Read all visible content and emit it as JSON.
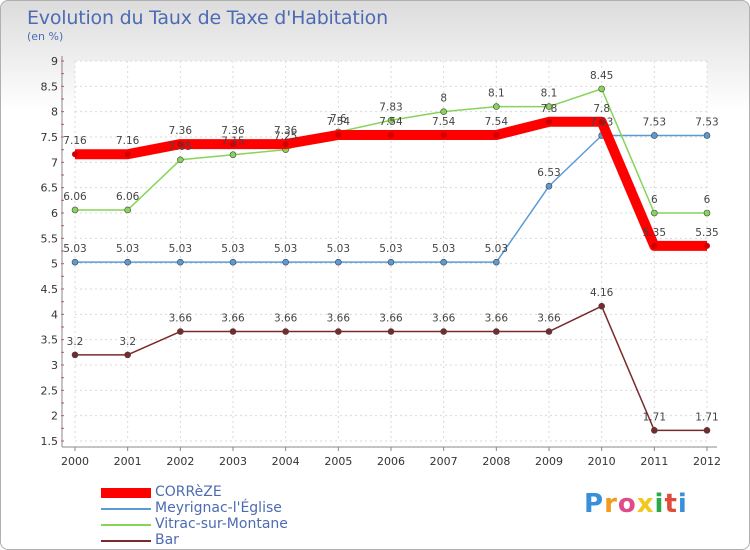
{
  "chart_data": {
    "type": "line",
    "title": "Evolution du Taux de Taxe d'Habitation",
    "subtitle": "(en %)",
    "x": [
      "2000",
      "2001",
      "2002",
      "2003",
      "2004",
      "2005",
      "2006",
      "2007",
      "2008",
      "2009",
      "2010",
      "2011",
      "2012"
    ],
    "ylim": [
      1.5,
      9
    ],
    "yticks": [
      "1.5",
      "2",
      "2.5",
      "3",
      "3.5",
      "4",
      "4.5",
      "5",
      "5.5",
      "6",
      "6.5",
      "7",
      "7.5",
      "8",
      "8.5",
      "9"
    ],
    "grid": true,
    "legend_position": "bottom-left",
    "series": [
      {
        "name": "CORRèZE",
        "color": "#ff0000",
        "values": [
          7.16,
          7.16,
          7.36,
          7.36,
          7.36,
          7.54,
          7.54,
          7.54,
          7.54,
          7.8,
          7.8,
          5.35,
          5.35
        ],
        "labels": [
          "7.16",
          "7.16",
          "7.36",
          "7.36",
          "7.36",
          "7.54",
          "7.54",
          "7.54",
          "7.54",
          "7.8",
          "7.8",
          "5.35",
          "5.35"
        ]
      },
      {
        "name": "Meyrignac-l'Église",
        "color": "#5b9bd5",
        "values": [
          5.03,
          5.03,
          5.03,
          5.03,
          5.03,
          5.03,
          5.03,
          5.03,
          5.03,
          6.53,
          7.53,
          7.53,
          7.53
        ],
        "labels": [
          "5.03",
          "5.03",
          "5.03",
          "5.03",
          "5.03",
          "5.03",
          "5.03",
          "5.03",
          "5.03",
          "6.53",
          "7.53",
          "7.53",
          "7.53"
        ]
      },
      {
        "name": "Vitrac-sur-Montane",
        "color": "#86d45a",
        "values": [
          6.06,
          6.06,
          7.05,
          7.15,
          7.25,
          7.6,
          7.83,
          8,
          8.1,
          8.1,
          8.45,
          6,
          6
        ],
        "labels": [
          "6.06",
          "6.06",
          "7.05",
          "7.15",
          "7.25",
          "7.6",
          "7.83",
          "8",
          "8.1",
          "8.1",
          "8.45",
          "6",
          "6"
        ]
      },
      {
        "name": "Bar",
        "color": "#7a2a2a",
        "values": [
          3.2,
          3.2,
          3.66,
          3.66,
          3.66,
          3.66,
          3.66,
          3.66,
          3.66,
          3.66,
          4.16,
          1.71,
          1.71
        ],
        "labels": [
          "3.2",
          "3.2",
          "3.66",
          "3.66",
          "3.66",
          "3.66",
          "3.66",
          "3.66",
          "3.66",
          "3.66",
          "4.16",
          "1.71",
          "1.71"
        ]
      }
    ]
  },
  "brand": {
    "text": "Proxiti",
    "letters": [
      "P",
      "r",
      "o",
      "x",
      "i",
      "t",
      "i"
    ],
    "colors": [
      "#3a8fd9",
      "#f29b1f",
      "#e04b8a",
      "#f2c81f",
      "#2aa84a",
      "#e04b3a",
      "#3a8fd9"
    ]
  }
}
